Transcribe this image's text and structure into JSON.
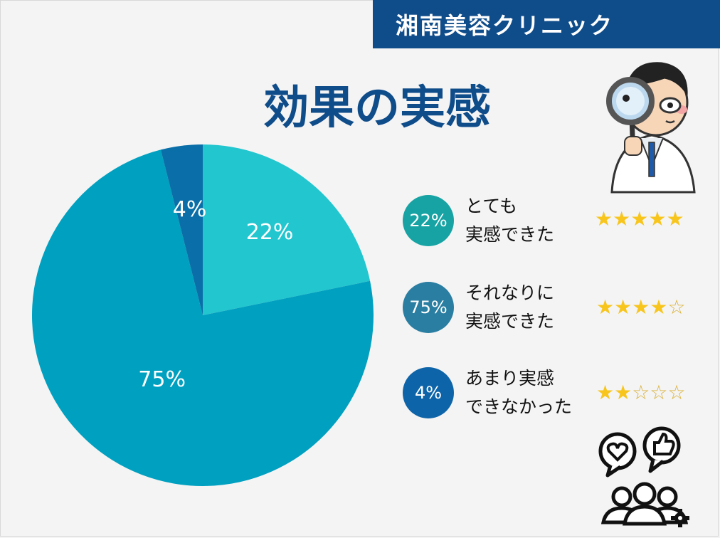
{
  "header": {
    "brand": "湘南美容クリニック"
  },
  "title": "効果の実感",
  "chart_data": {
    "type": "pie",
    "slices": [
      {
        "label": "22%",
        "value": 22,
        "color": "#22c6cf"
      },
      {
        "label": "75%",
        "value": 75,
        "color": "#00a0c0"
      },
      {
        "label": "4%",
        "value": 4,
        "color": "#0a6fa8"
      }
    ]
  },
  "legend": [
    {
      "percent": "22%",
      "text": "とても\n実感できた",
      "circle_color": "#17a3a3",
      "rating": 5
    },
    {
      "percent": "75%",
      "text": "それなりに\n実感できた",
      "circle_color": "#2a7ea2",
      "rating": 4
    },
    {
      "percent": "4%",
      "text": "あまり実感\nできなかった",
      "circle_color": "#0e64a8",
      "rating": 2
    }
  ],
  "icons": {
    "doctor": "doctor-with-magnifier-icon",
    "people": "people-feedback-icon",
    "star_full": "★",
    "star_empty": "☆"
  }
}
